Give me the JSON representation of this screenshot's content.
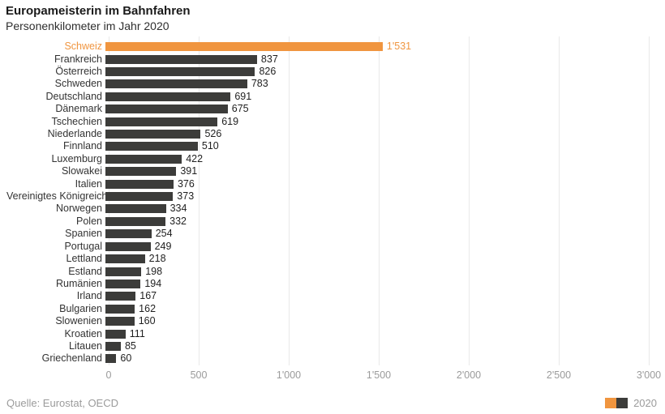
{
  "header": {
    "title": "Europameisterin im Bahnfahren",
    "subtitle": "Personenkilometer im Jahr 2020"
  },
  "chart_data": {
    "type": "bar",
    "orientation": "horizontal",
    "title": "Europameisterin im Bahnfahren",
    "subtitle": "Personenkilometer im Jahr 2020",
    "xlabel": "",
    "ylabel": "",
    "xlim": [
      0,
      3000
    ],
    "grid": true,
    "legend_position": "bottom-right",
    "categories": [
      "Schweiz",
      "Frankreich",
      "Österreich",
      "Schweden",
      "Deutschland",
      "Dänemark",
      "Tschechien",
      "Niederlande",
      "Finnland",
      "Luxemburg",
      "Slowakei",
      "Italien",
      "Vereinigtes Königreich",
      "Norwegen",
      "Polen",
      "Spanien",
      "Portugal",
      "Lettland",
      "Estland",
      "Rumänien",
      "Irland",
      "Bulgarien",
      "Slowenien",
      "Kroatien",
      "Litauen",
      "Griechenland"
    ],
    "values": [
      1531,
      837,
      826,
      783,
      691,
      675,
      619,
      526,
      510,
      422,
      391,
      376,
      373,
      334,
      332,
      254,
      249,
      218,
      198,
      194,
      167,
      162,
      160,
      111,
      85,
      60
    ],
    "value_labels": [
      "1'531",
      "837",
      "826",
      "783",
      "691",
      "675",
      "619",
      "526",
      "510",
      "422",
      "391",
      "376",
      "373",
      "334",
      "332",
      "254",
      "249",
      "218",
      "198",
      "194",
      "167",
      "162",
      "160",
      "111",
      "85",
      "60"
    ],
    "highlight_category": "Schweiz",
    "tick_values": [
      0,
      500,
      1000,
      1500,
      2000,
      2500,
      3000
    ],
    "tick_labels": [
      "0",
      "500",
      "1'000",
      "1'500",
      "2'000",
      "2'500",
      "3'000"
    ]
  },
  "footer": {
    "source": "Quelle: Eurostat, OECD",
    "legend_label": "2020"
  },
  "colors": {
    "accent": "#f0953f",
    "bar": "#3c3c3a",
    "gridline": "#e9e9e9",
    "axis_text": "#9b9b9b",
    "source_text": "#9b9b9b"
  }
}
